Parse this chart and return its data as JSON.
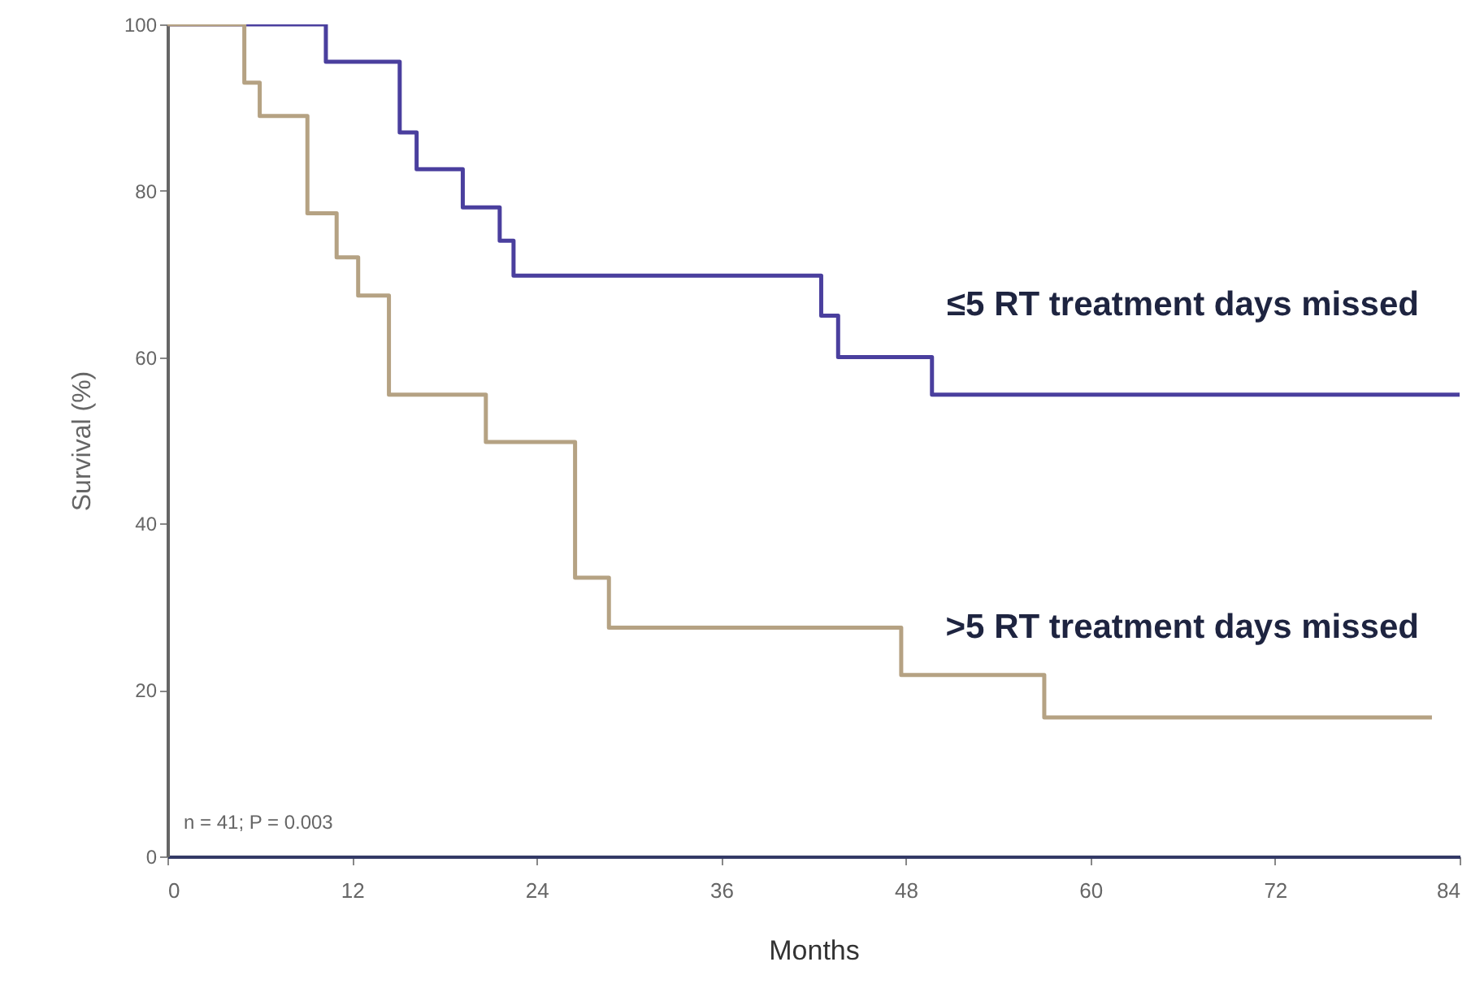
{
  "chart_data": {
    "type": "step",
    "xlabel": "Months",
    "ylabel": "Survival (%)",
    "xlim": [
      0,
      84
    ],
    "xticks": [
      0,
      12,
      24,
      36,
      48,
      60,
      72,
      84
    ],
    "ylim": [
      0,
      100
    ],
    "yticks": [
      0,
      20,
      40,
      60,
      80,
      100
    ],
    "grid": false,
    "marker": "none",
    "line_style": "solid",
    "annotations": [
      "n = 41; P = 0.003"
    ],
    "series": [
      {
        "name": "≤5 RT treatment days missed",
        "color": "#4a3f9e",
        "x": [
          0,
          10.3,
          15.1,
          16.2,
          19.2,
          21.6,
          22.5,
          42.5,
          43.6,
          49.7,
          84
        ],
        "values": [
          100,
          95.5,
          87,
          82.6,
          78,
          74,
          69.8,
          65,
          60,
          55.5,
          55.5
        ]
      },
      {
        "name": ">5 RT treatment days missed",
        "color": "#b5a283",
        "x": [
          0,
          5,
          6,
          9.1,
          11,
          12.4,
          14.4,
          20.7,
          26.5,
          28.7,
          47.7,
          57,
          82.2
        ],
        "values": [
          100,
          93,
          89,
          77.3,
          72,
          67.4,
          55.5,
          49.8,
          33.5,
          27.5,
          21.8,
          16.7,
          16.7
        ]
      }
    ]
  }
}
